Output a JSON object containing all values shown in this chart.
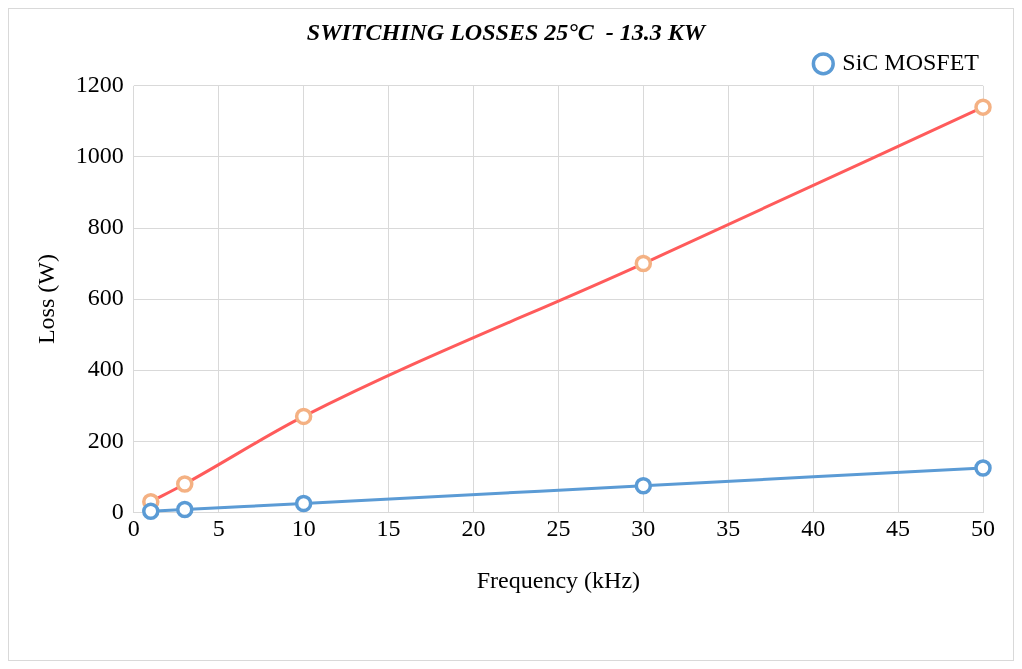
{
  "chart_data": {
    "type": "line",
    "title": "SWITCHING LOSSES 25°C  - 13.3 KW",
    "xlabel": "Frequency (kHz)",
    "ylabel": "Loss (W)",
    "x": [
      1,
      3,
      10,
      30,
      50
    ],
    "series": [
      {
        "name": "SiC MOSFET",
        "color": "#5b9bd5",
        "values": [
          3,
          8,
          25,
          75,
          125
        ]
      },
      {
        "color": "#ff5b5b",
        "colors": [
          "#f4b183",
          "#f4b183",
          "#f4b183",
          "#f4b183",
          "#f4b183"
        ],
        "values": [
          30,
          80,
          270,
          700,
          1140
        ]
      }
    ],
    "xlim": [
      0,
      50
    ],
    "xticks": [
      0,
      5,
      10,
      15,
      20,
      25,
      30,
      35,
      40,
      45,
      50
    ],
    "ylim": [
      0,
      1200
    ],
    "yticks": [
      0,
      200,
      400,
      600,
      800,
      1000,
      1200
    ],
    "grid": true,
    "legend": "top right",
    "marker": "circle"
  }
}
